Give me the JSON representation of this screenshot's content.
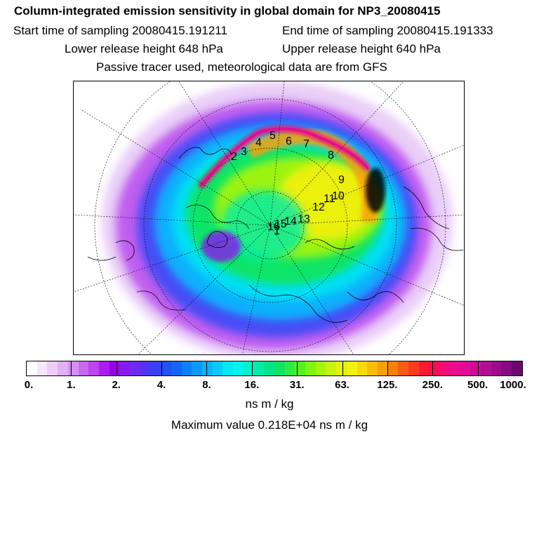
{
  "title": "Column-integrated emission sensitivity in global domain for NP3_20080415",
  "start_time": "Start time of sampling 20080415.191211",
  "end_time": "End time of sampling 20080415.191333",
  "lower_release": "Lower release height  648 hPa",
  "upper_release": "Upper release height  640 hPa",
  "tracer_note": "Passive tracer used, meteorological data are from GFS",
  "colorbar": {
    "labels": [
      "0.",
      "1.",
      "2.",
      "4.",
      "8.",
      "16.",
      "31.",
      "63.",
      "125.",
      "250.",
      "500.",
      "1000."
    ],
    "colors": [
      "#ffffff",
      "#f6e6fb",
      "#eccdf7",
      "#e0b0f4",
      "#d58ff0",
      "#c96aee",
      "#bc45ee",
      "#ac1cf0",
      "#9a00f0",
      "#8818f2",
      "#6e2af2",
      "#5434f4",
      "#3a40f6",
      "#2052f8",
      "#1266fa",
      "#0e7ffc",
      "#0c98fc",
      "#0ab4fc",
      "#06ccfa",
      "#04e6f6",
      "#00f4ea",
      "#00f2c8",
      "#00eca8",
      "#00e488",
      "#10e468",
      "#30ec40",
      "#58f020",
      "#80f410",
      "#a4f410",
      "#c4f410",
      "#e0f410",
      "#f4f010",
      "#f8d808",
      "#f8bc08",
      "#f8a008",
      "#f88008",
      "#f85c10",
      "#f83c20",
      "#f81c30",
      "#f80c58",
      "#f00c78",
      "#ec0c90",
      "#e00c98",
      "#cc0c98",
      "#b40c94",
      "#9c0c8c",
      "#840c80",
      "#6c0870"
    ]
  },
  "units": "ns m / kg",
  "max_value": "Maximum value  0.218E+04 ns m / kg",
  "markers": [
    "1",
    "2",
    "3",
    "4",
    "5",
    "6",
    "7",
    "8",
    "9",
    "10",
    "11",
    "12",
    "13",
    "14",
    "15",
    "16"
  ]
}
